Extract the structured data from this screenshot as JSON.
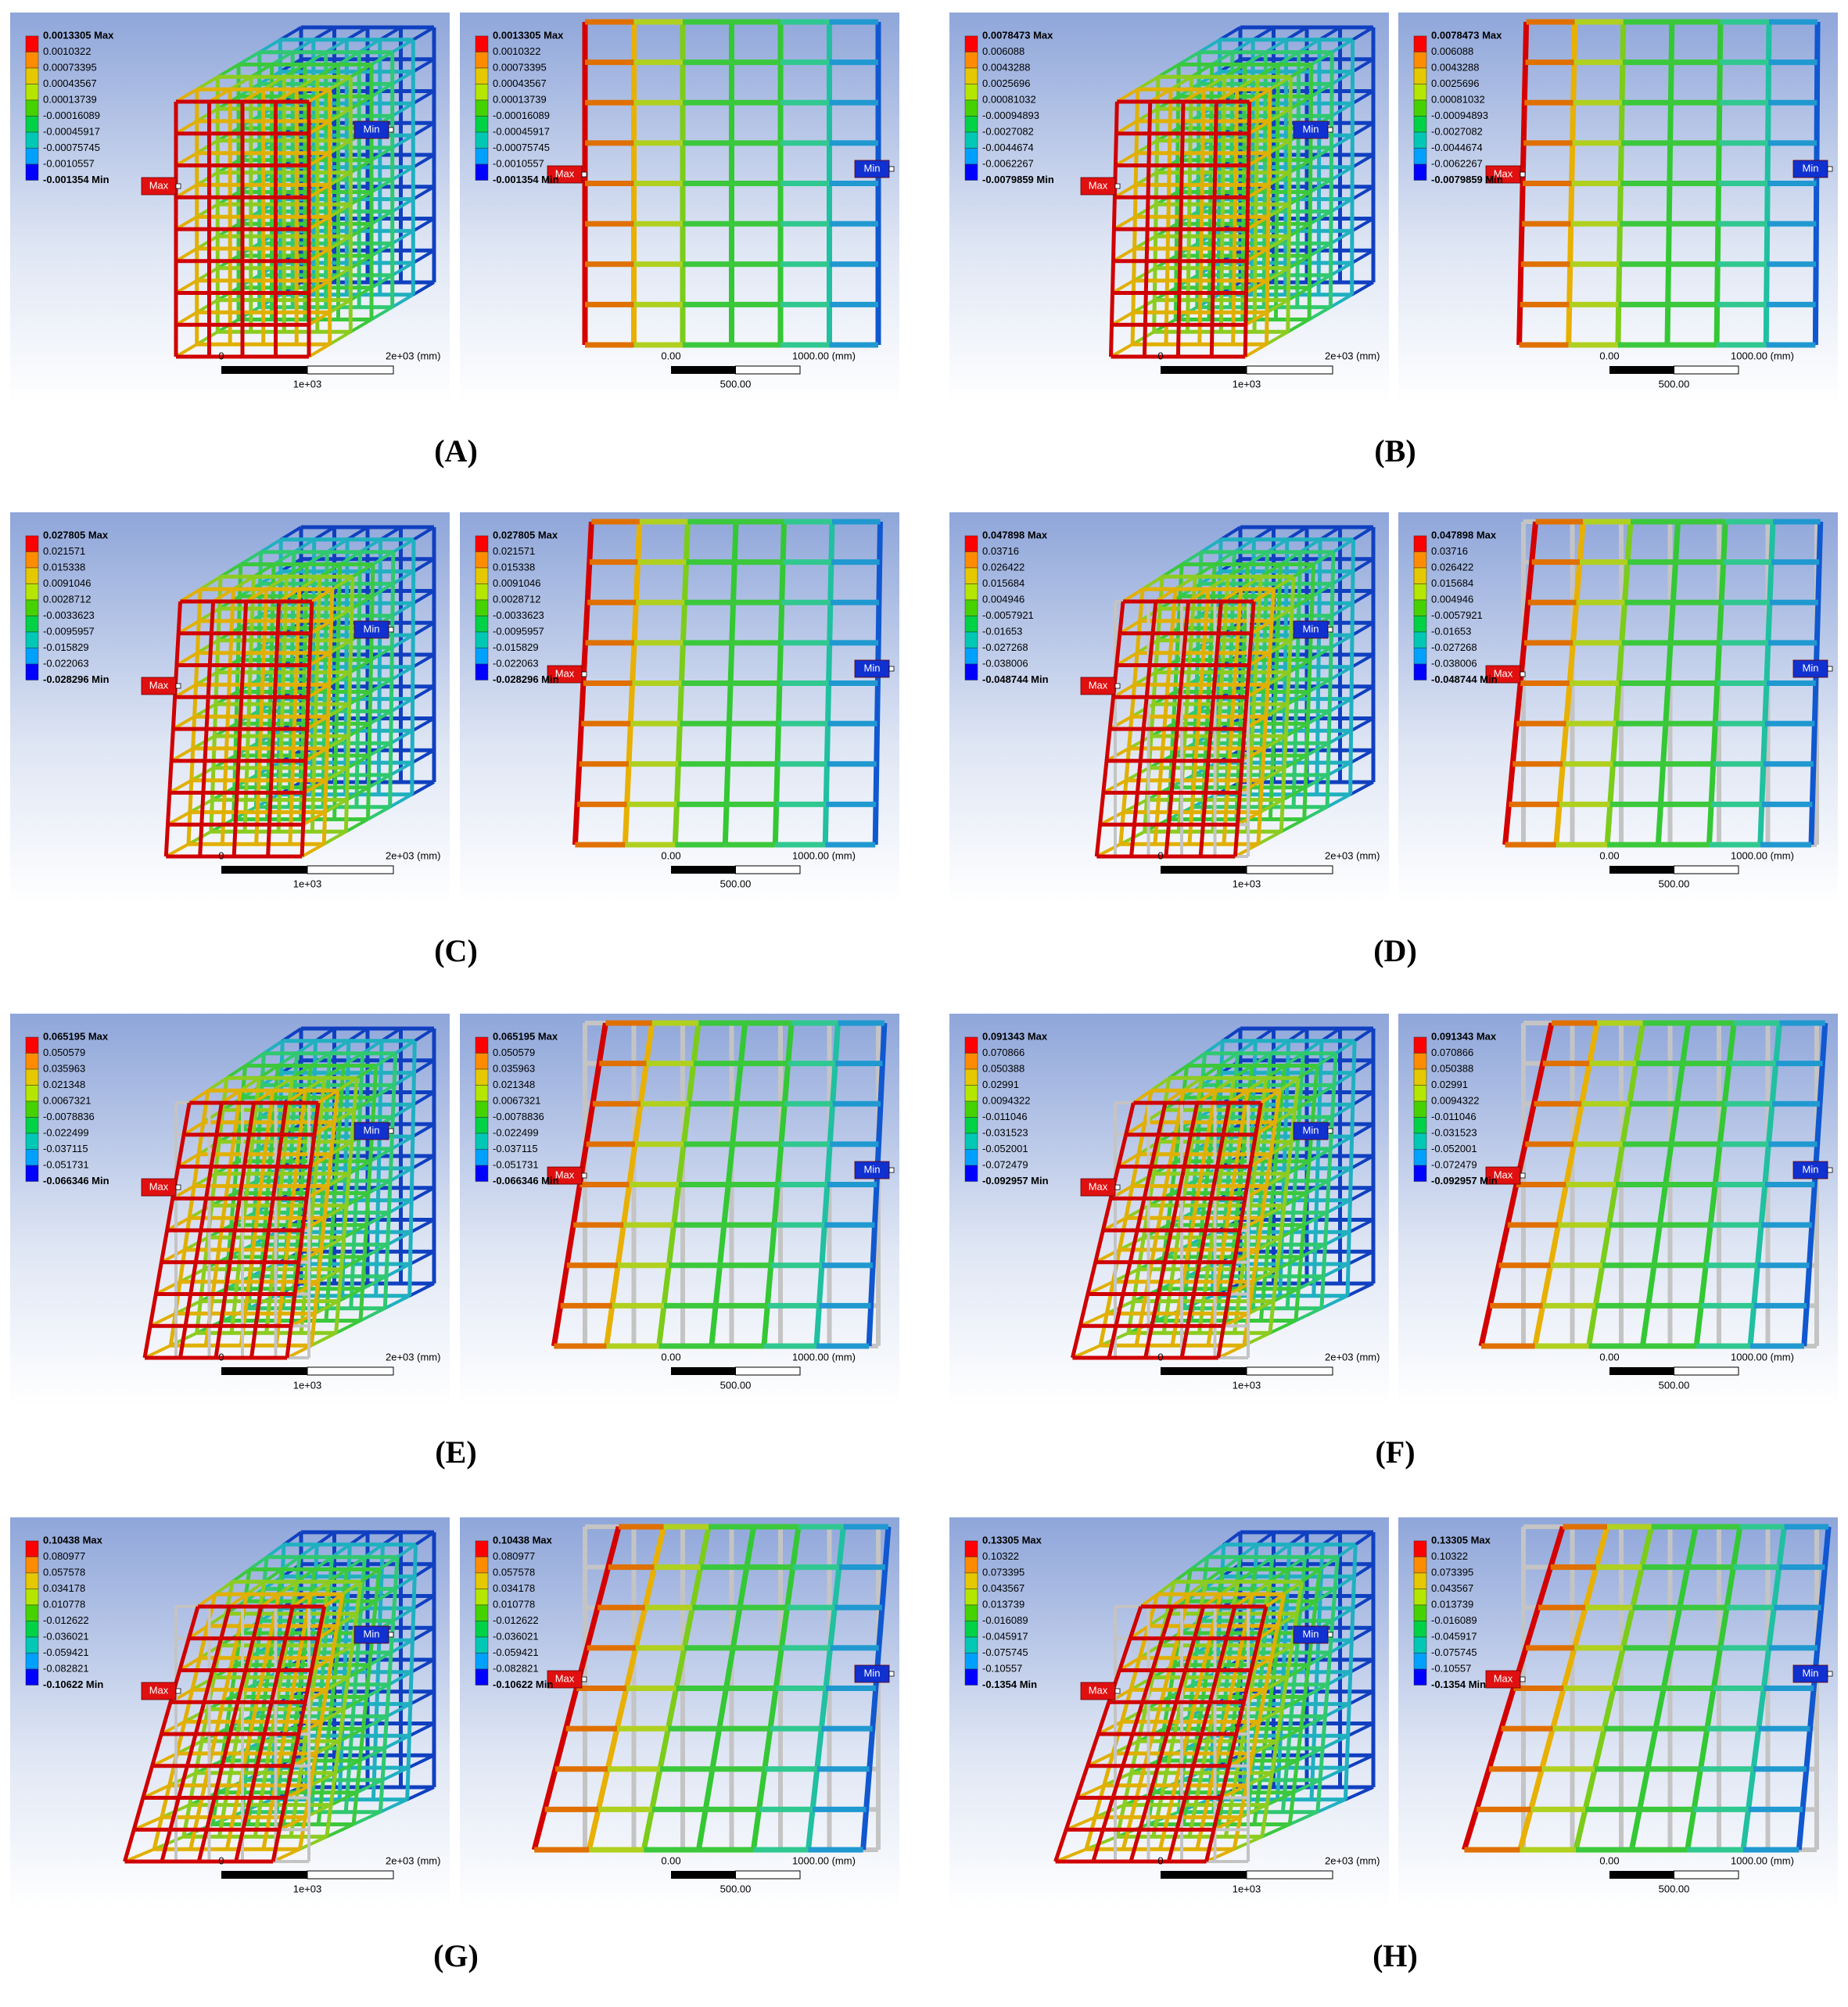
{
  "tags": {
    "max": "Max",
    "min": "Min"
  },
  "scale_3d": [
    "0",
    "2e+03 (mm)",
    "1e+03"
  ],
  "scale_front": [
    "0.00",
    "1000.00 (mm)",
    "500.00"
  ],
  "panels": [
    {
      "label": "(A)",
      "legend": [
        "0.0013305 Max",
        "0.0010322",
        "0.00073395",
        "0.00043567",
        "0.00013739",
        "-0.00016089",
        "-0.00045917",
        "-0.00075745",
        "-0.0010557",
        "-0.001354 Min"
      ]
    },
    {
      "label": "(B)",
      "legend": [
        "0.0078473 Max",
        "0.006088",
        "0.0043288",
        "0.0025696",
        "0.00081032",
        "-0.00094893",
        "-0.0027082",
        "-0.0044674",
        "-0.0062267",
        "-0.0079859 Min"
      ]
    },
    {
      "label": "(C)",
      "legend": [
        "0.027805 Max",
        "0.021571",
        "0.015338",
        "0.0091046",
        "0.0028712",
        "-0.0033623",
        "-0.0095957",
        "-0.015829",
        "-0.022063",
        "-0.028296 Min"
      ]
    },
    {
      "label": "(D)",
      "legend": [
        "0.047898 Max",
        "0.03716",
        "0.026422",
        "0.015684",
        "0.004946",
        "-0.0057921",
        "-0.01653",
        "-0.027268",
        "-0.038006",
        "-0.048744 Min"
      ]
    },
    {
      "label": "(E)",
      "legend": [
        "0.065195 Max",
        "0.050579",
        "0.035963",
        "0.021348",
        "0.0067321",
        "-0.0078836",
        "-0.022499",
        "-0.037115",
        "-0.051731",
        "-0.066346 Min"
      ]
    },
    {
      "label": "(F)",
      "legend": [
        "0.091343 Max",
        "0.070866",
        "0.050388",
        "0.02991",
        "0.0094322",
        "-0.011046",
        "-0.031523",
        "-0.052001",
        "-0.072479",
        "-0.092957 Min"
      ]
    },
    {
      "label": "(G)",
      "legend": [
        "0.10438 Max",
        "0.080977",
        "0.057578",
        "0.034178",
        "0.010778",
        "-0.012622",
        "-0.036021",
        "-0.059421",
        "-0.082821",
        "-0.10622 Min"
      ]
    },
    {
      "label": "(H)",
      "legend": [
        "0.13305 Max",
        "0.10322",
        "0.073395",
        "0.043567",
        "0.013739",
        "-0.016089",
        "-0.045917",
        "-0.075745",
        "-0.10557",
        "-0.1354 Min"
      ]
    }
  ]
}
